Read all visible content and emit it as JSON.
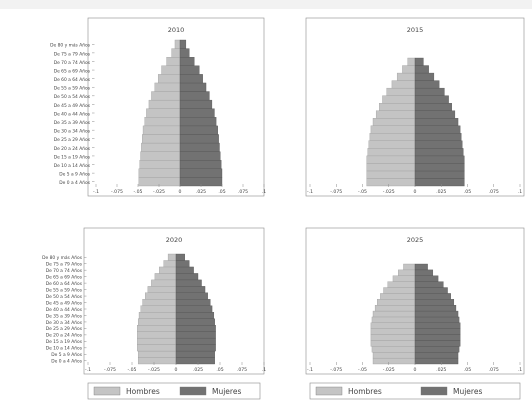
{
  "chart_data": [
    {
      "type": "bar",
      "orientation": "horizontal",
      "layout": "population-pyramid",
      "title": "2010",
      "categories": [
        "De 0 a 4 Años",
        "De 5 a 9 Años",
        "De 10 a 14 Años",
        "De 15 a 19 Años",
        "De 20 a 24 Años",
        "De 25 a 29 Años",
        "De 30 a 34 Años",
        "De 35 a 39 Años",
        "De 40 a 44 Años",
        "De 45 a 49 Años",
        "De 50 a 54 Años",
        "De 55 a 59 Años",
        "De 60 a 64 Años",
        "De 65 a 69 Años",
        "De 70 a 74 Años",
        "De 75 a 79 Años",
        "De 80 y más Años"
      ],
      "series": [
        {
          "name": "Hombres",
          "values": [
            0.049,
            0.049,
            0.048,
            0.047,
            0.046,
            0.045,
            0.044,
            0.042,
            0.04,
            0.037,
            0.034,
            0.03,
            0.026,
            0.022,
            0.016,
            0.01,
            0.006
          ]
        },
        {
          "name": "Mujeres",
          "values": [
            0.05,
            0.05,
            0.049,
            0.048,
            0.047,
            0.046,
            0.045,
            0.043,
            0.041,
            0.038,
            0.035,
            0.031,
            0.027,
            0.023,
            0.017,
            0.011,
            0.007
          ]
        }
      ],
      "xlim": [
        -0.1,
        0.1
      ],
      "xticks": [
        "-.1",
        "-.075",
        "-.05",
        "-.025",
        "0",
        ".025",
        ".05",
        ".075",
        ".1"
      ],
      "show_category_labels": true
    },
    {
      "type": "bar",
      "orientation": "horizontal",
      "layout": "population-pyramid",
      "title": "2015",
      "categories": [
        "De 0 a 4 Años",
        "De 5 a 9 Años",
        "De 10 a 14 Años",
        "De 15 a 19 Años",
        "De 20 a 24 Años",
        "De 25 a 29 Años",
        "De 30 a 34 Años",
        "De 35 a 39 Años",
        "De 40 a 44 Años",
        "De 45 a 49 Años",
        "De 50 a 54 Años",
        "De 55 a 59 Años",
        "De 60 a 64 Años",
        "De 65 a 69 Años",
        "De 70 a 74 Años",
        "De 75 a 79 Años",
        "De 80 y más Años"
      ],
      "series": [
        {
          "name": "Hombres",
          "values": [
            0.046,
            0.046,
            0.046,
            0.046,
            0.045,
            0.044,
            0.043,
            0.042,
            0.04,
            0.037,
            0.034,
            0.031,
            0.027,
            0.022,
            0.017,
            0.012,
            0.007
          ]
        },
        {
          "name": "Mujeres",
          "values": [
            0.047,
            0.047,
            0.047,
            0.047,
            0.046,
            0.045,
            0.044,
            0.043,
            0.041,
            0.038,
            0.035,
            0.032,
            0.028,
            0.023,
            0.018,
            0.013,
            0.008
          ]
        }
      ],
      "xlim": [
        -0.1,
        0.1
      ],
      "xticks": [
        "-.1",
        "-.075",
        "-.05",
        "-.025",
        "0",
        ".025",
        ".05",
        ".075",
        ".1"
      ],
      "show_category_labels": false
    },
    {
      "type": "bar",
      "orientation": "horizontal",
      "layout": "population-pyramid",
      "title": "2020",
      "categories": [
        "De 0 a 4 Años",
        "De 5 a 9 Años",
        "De 10 a 14 Años",
        "De 15 a 19 Años",
        "De 20 a 24 Años",
        "De 25 a 29 Años",
        "De 30 a 34 Años",
        "De 35 a 39 Años",
        "De 40 a 44 Años",
        "De 45 a 49 Años",
        "De 50 a 54 Años",
        "De 55 a 59 Años",
        "De 60 a 64 Años",
        "De 65 a 69 Años",
        "De 70 a 74 Años",
        "De 75 a 79 Años",
        "De 80 y más Años"
      ],
      "series": [
        {
          "name": "Hombres",
          "values": [
            0.043,
            0.043,
            0.044,
            0.044,
            0.044,
            0.044,
            0.043,
            0.042,
            0.04,
            0.038,
            0.035,
            0.032,
            0.028,
            0.024,
            0.019,
            0.014,
            0.009
          ]
        },
        {
          "name": "Mujeres",
          "values": [
            0.044,
            0.044,
            0.045,
            0.045,
            0.045,
            0.045,
            0.044,
            0.043,
            0.041,
            0.039,
            0.036,
            0.033,
            0.029,
            0.025,
            0.02,
            0.015,
            0.01
          ]
        }
      ],
      "xlim": [
        -0.1,
        0.1
      ],
      "xticks": [
        "-.1",
        "-.075",
        "-.05",
        "-.025",
        "0",
        ".025",
        ".05",
        ".075",
        ".1"
      ],
      "show_category_labels": true
    },
    {
      "type": "bar",
      "orientation": "horizontal",
      "layout": "population-pyramid",
      "title": "2025",
      "categories": [
        "De 0 a 4 Años",
        "De 5 a 9 Años",
        "De 10 a 14 Años",
        "De 15 a 19 Años",
        "De 20 a 24 Años",
        "De 25 a 29 Años",
        "De 30 a 34 Años",
        "De 35 a 39 Años",
        "De 40 a 44 Años",
        "De 45 a 49 Años",
        "De 50 a 54 Años",
        "De 55 a 59 Años",
        "De 60 a 64 Años",
        "De 65 a 69 Años",
        "De 70 a 74 Años",
        "De 75 a 79 Años",
        "De 80 y más Años"
      ],
      "series": [
        {
          "name": "Hombres",
          "values": [
            0.04,
            0.04,
            0.041,
            0.042,
            0.042,
            0.042,
            0.042,
            0.041,
            0.04,
            0.038,
            0.036,
            0.033,
            0.03,
            0.026,
            0.021,
            0.016,
            0.011
          ]
        },
        {
          "name": "Mujeres",
          "values": [
            0.041,
            0.041,
            0.042,
            0.043,
            0.043,
            0.043,
            0.043,
            0.042,
            0.041,
            0.039,
            0.037,
            0.034,
            0.031,
            0.027,
            0.022,
            0.017,
            0.012
          ]
        }
      ],
      "xlim": [
        -0.1,
        0.1
      ],
      "xticks": [
        "-.1",
        "-.075",
        "-.05",
        "-.025",
        "0",
        ".025",
        ".05",
        ".075",
        ".1"
      ],
      "show_category_labels": false
    }
  ],
  "legend": [
    {
      "name": "Hombres",
      "color": "#c4c4c4"
    },
    {
      "name": "Mujeres",
      "color": "#727272"
    }
  ],
  "colors": {
    "hombres": "#c4c4c4",
    "mujeres": "#727272",
    "frame": "#8a8a8a",
    "text": "#444444"
  }
}
